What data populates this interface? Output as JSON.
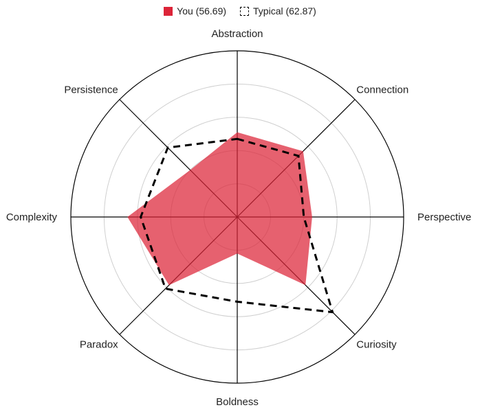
{
  "chart_data": {
    "type": "radar",
    "axes": [
      "Abstraction",
      "Connection",
      "Perspective",
      "Curiosity",
      "Boldness",
      "Paradox",
      "Complexity",
      "Persistence"
    ],
    "range": [
      0,
      100
    ],
    "gridlines": [
      20,
      40,
      60,
      80,
      100
    ],
    "series": [
      {
        "name": "You (56.69)",
        "values": [
          51,
          56,
          45,
          58,
          22,
          58,
          66,
          40
        ],
        "color": "#dc2438",
        "style": "filled"
      },
      {
        "name": "Typical (62.87)",
        "values": [
          47,
          52,
          40,
          81,
          51,
          61,
          58,
          59
        ],
        "color": "#000000",
        "style": "dashed"
      }
    ],
    "legend_position": "top-center"
  }
}
